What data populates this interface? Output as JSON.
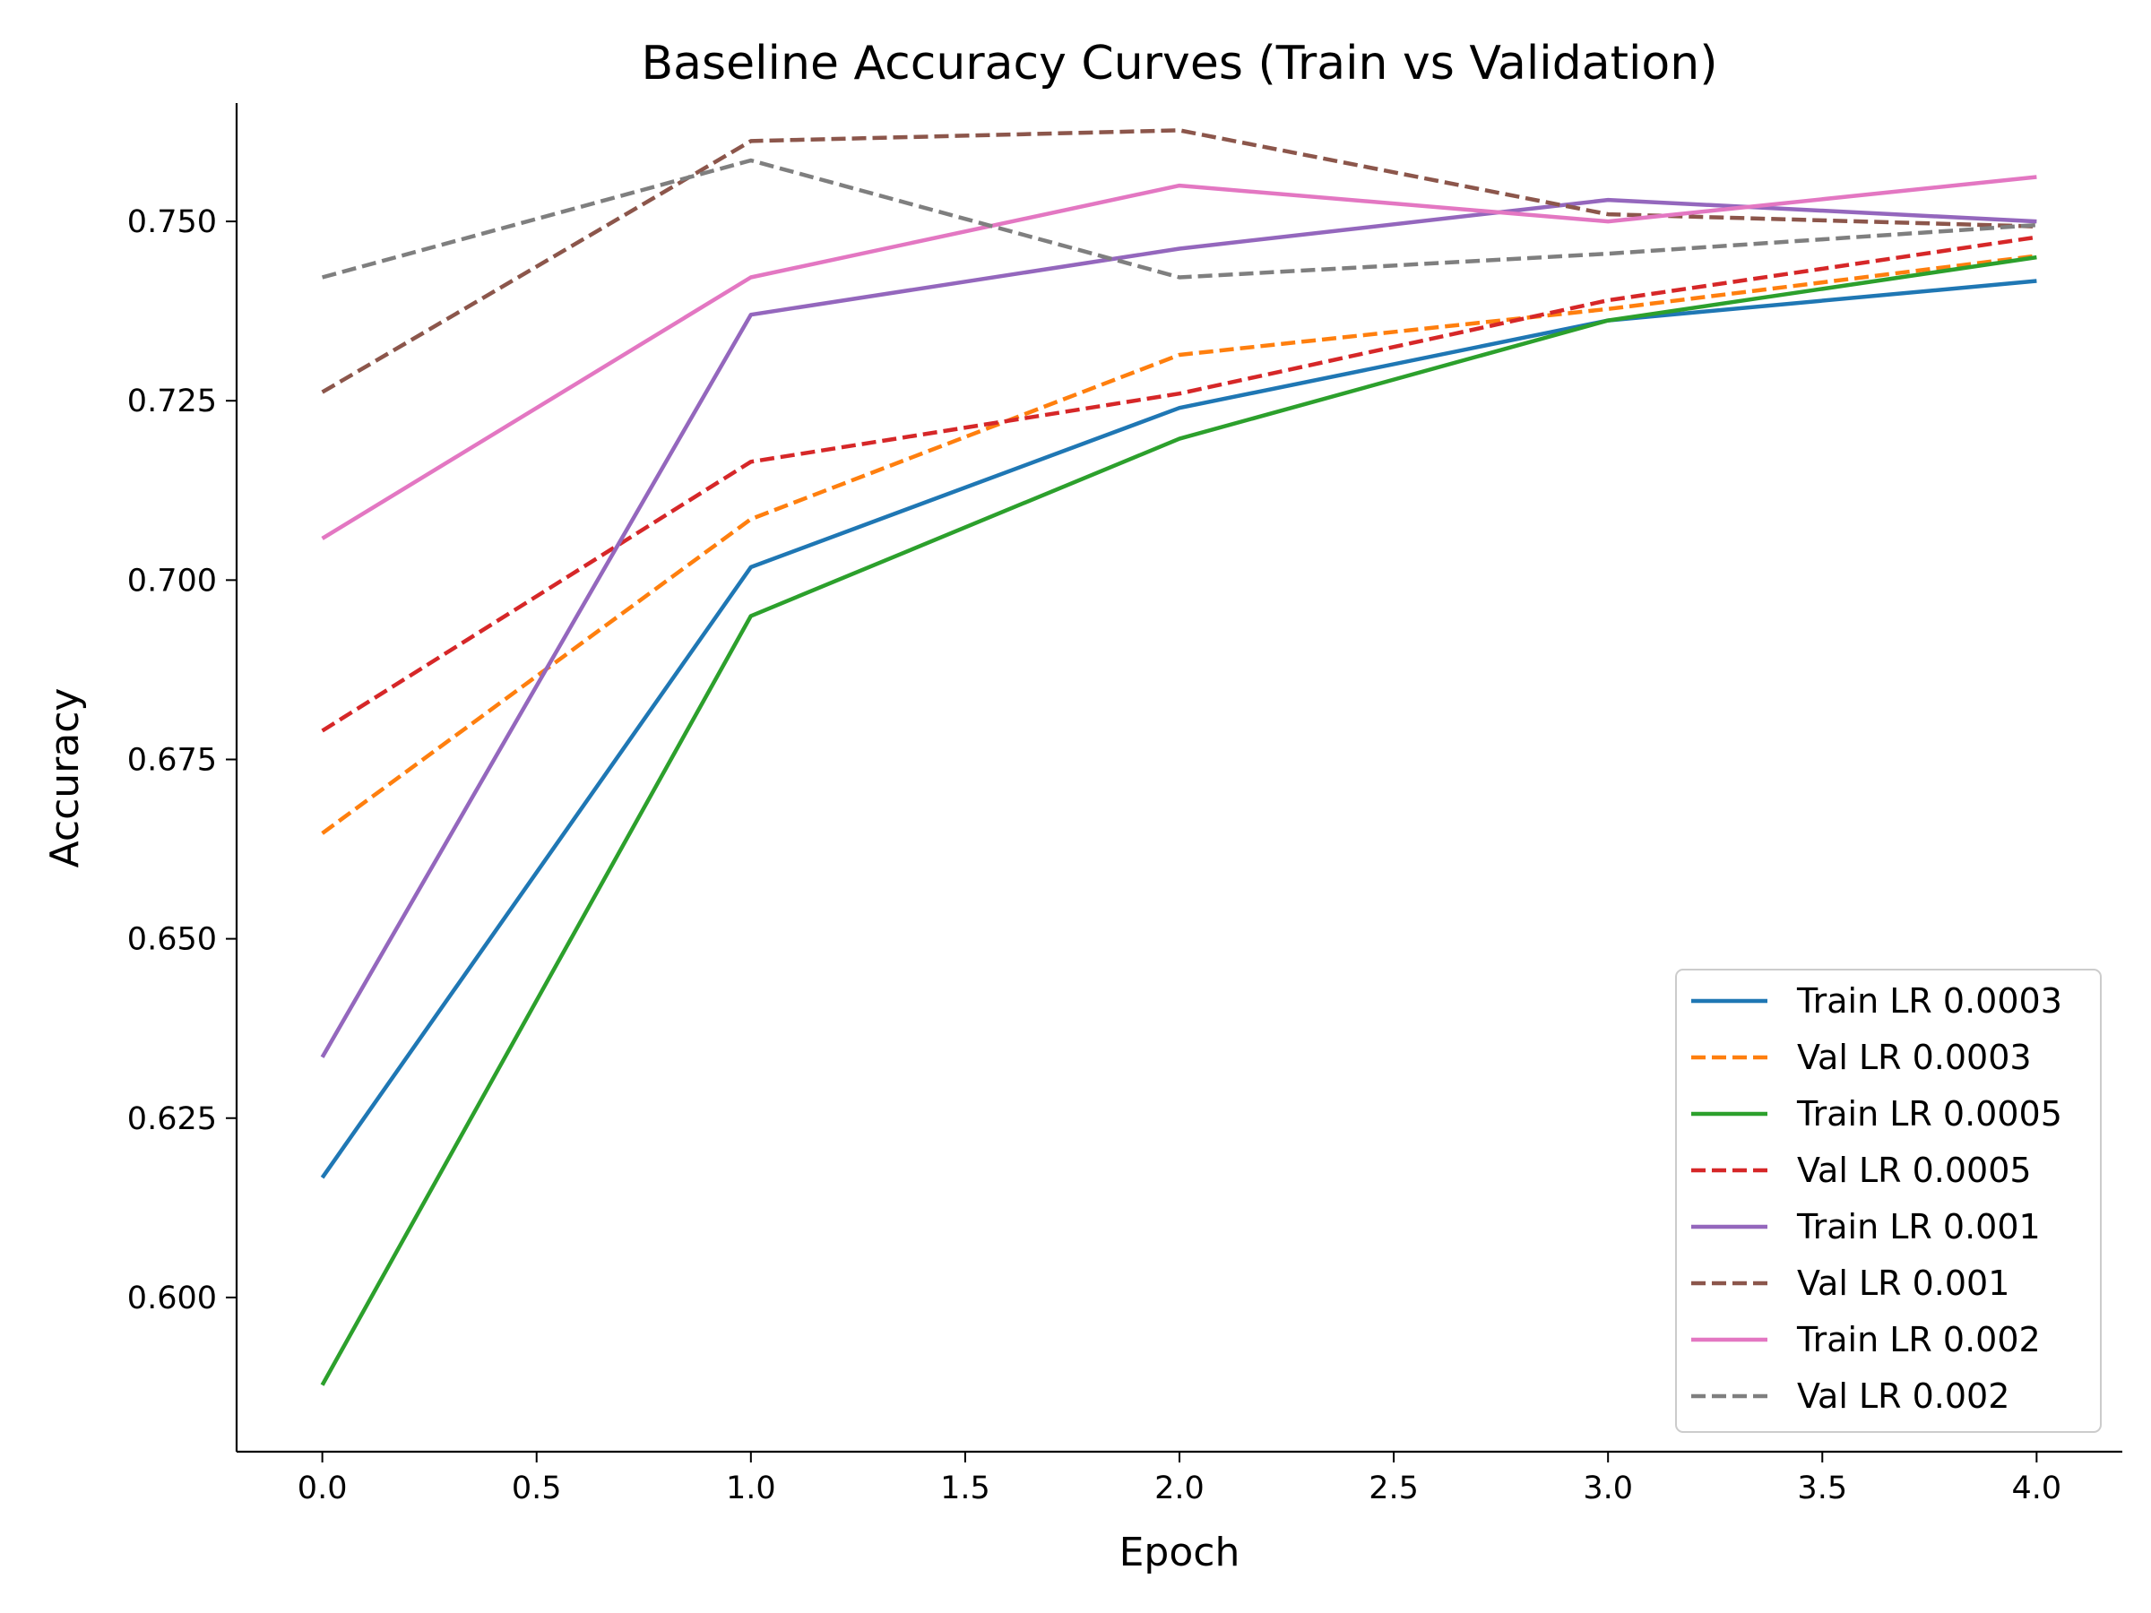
{
  "chart_data": {
    "type": "line",
    "title": "Baseline Accuracy Curves (Train vs Validation)",
    "xlabel": "Epoch",
    "ylabel": "Accuracy",
    "xlim": [
      -0.2,
      4.2
    ],
    "ylim": [
      0.5785,
      0.7665
    ],
    "xticks": [
      0.0,
      0.5,
      1.0,
      1.5,
      2.0,
      2.5,
      3.0,
      3.5,
      4.0
    ],
    "xtick_labels": [
      "0.0",
      "0.5",
      "1.0",
      "1.5",
      "2.0",
      "2.5",
      "3.0",
      "3.5",
      "4.0"
    ],
    "yticks": [
      0.6,
      0.625,
      0.65,
      0.675,
      0.7,
      0.725,
      0.75
    ],
    "ytick_labels": [
      "0.600",
      "0.625",
      "0.650",
      "0.675",
      "0.700",
      "0.725",
      "0.750"
    ],
    "grid": false,
    "legend_position": "lower-right",
    "x": [
      0,
      1,
      2,
      3,
      4
    ],
    "series": [
      {
        "name": "Train LR 0.0003",
        "color": "#1f77b4",
        "dash": "solid",
        "values": [
          0.6167,
          0.7018,
          0.724,
          0.7362,
          0.7417
        ]
      },
      {
        "name": "Val LR 0.0003",
        "color": "#ff7f0e",
        "dash": "dashed",
        "values": [
          0.6647,
          0.7085,
          0.7314,
          0.7378,
          0.7452
        ]
      },
      {
        "name": "Train LR 0.0005",
        "color": "#2ca02c",
        "dash": "solid",
        "values": [
          0.5878,
          0.695,
          0.7197,
          0.7362,
          0.745
        ]
      },
      {
        "name": "Val LR 0.0005",
        "color": "#d62728",
        "dash": "dashed",
        "values": [
          0.679,
          0.7165,
          0.726,
          0.739,
          0.7478
        ]
      },
      {
        "name": "Train LR 0.001",
        "color": "#9467bd",
        "dash": "solid",
        "values": [
          0.6335,
          0.737,
          0.7462,
          0.753,
          0.75
        ]
      },
      {
        "name": "Val LR 0.001",
        "color": "#8c564b",
        "dash": "dashed",
        "values": [
          0.7262,
          0.7612,
          0.7627,
          0.751,
          0.7493
        ]
      },
      {
        "name": "Train LR 0.002",
        "color": "#e377c2",
        "dash": "solid",
        "values": [
          0.7058,
          0.7422,
          0.755,
          0.75,
          0.7562
        ]
      },
      {
        "name": "Val LR 0.002",
        "color": "#7f7f7f",
        "dash": "dashed",
        "values": [
          0.7422,
          0.7585,
          0.7422,
          0.7455,
          0.7495
        ]
      }
    ]
  }
}
